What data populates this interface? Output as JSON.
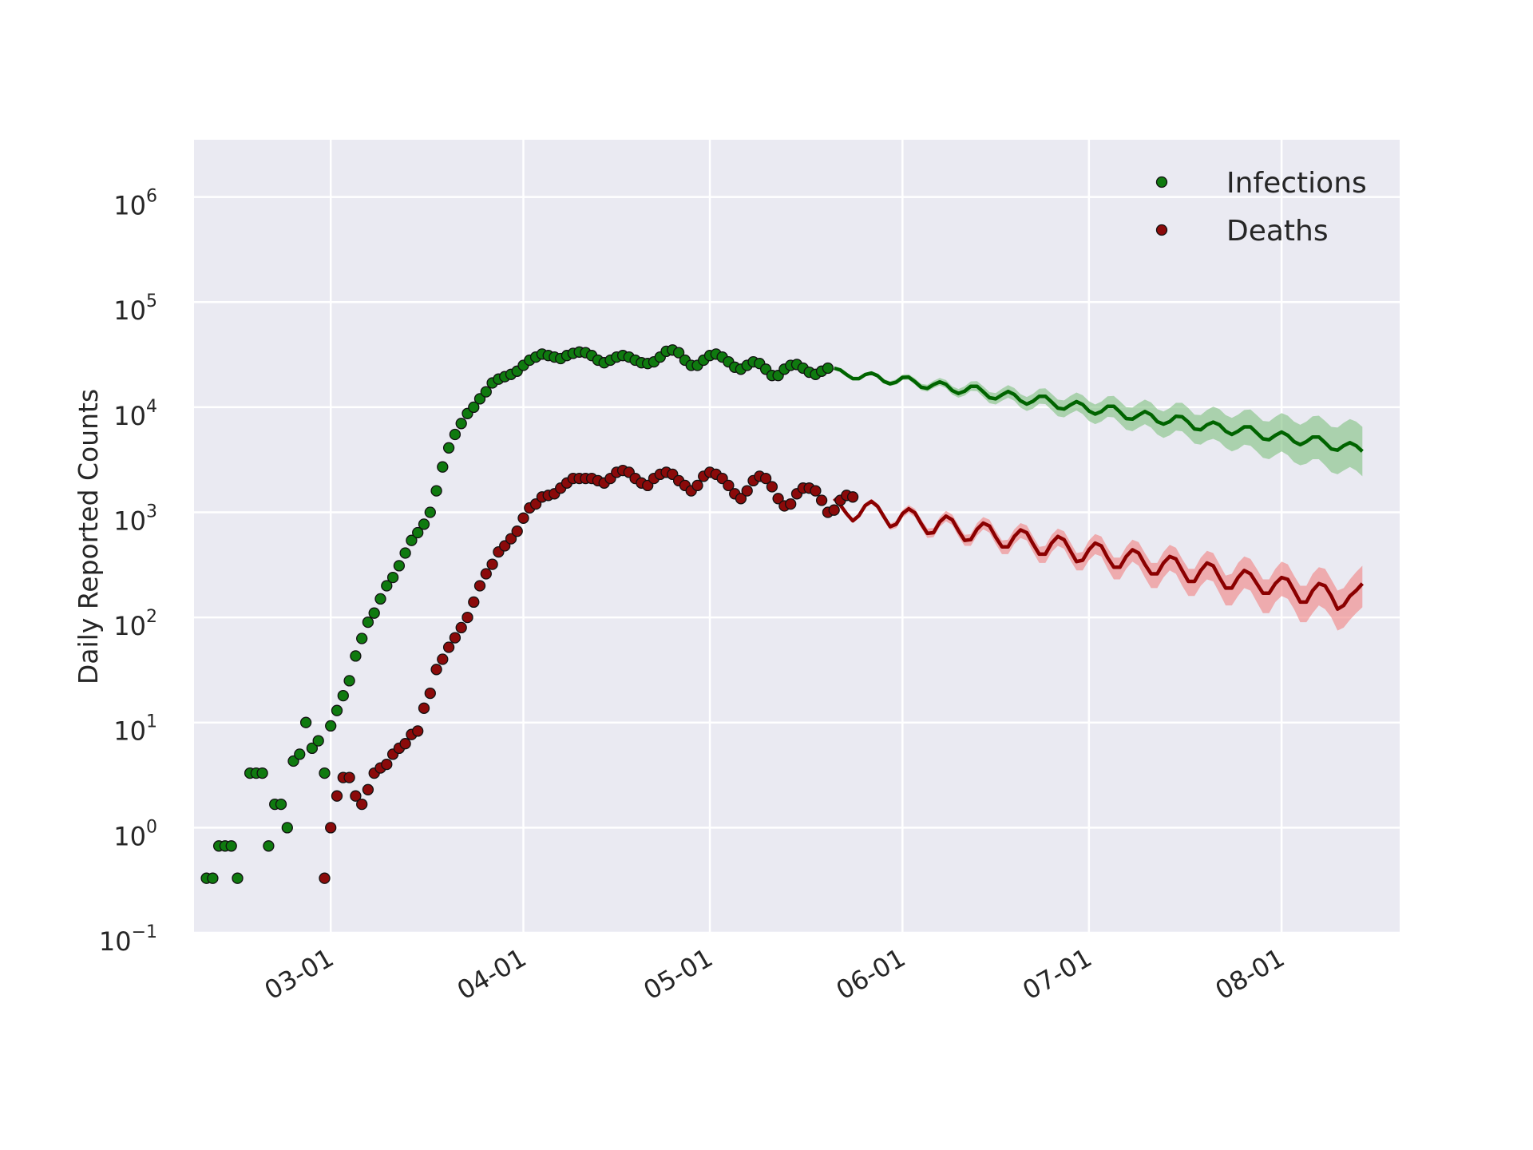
{
  "chart_data": {
    "type": "scatter",
    "title": "",
    "xlabel": "",
    "ylabel": "Daily Reported Counts",
    "y_scale": "log",
    "ylim": [
      0.1,
      3500000
    ],
    "xlim": [
      "2020-02-08",
      "2020-08-20"
    ],
    "x_ticks": [
      "2020-03-01",
      "2020-04-01",
      "2020-05-01",
      "2020-06-01",
      "2020-07-01",
      "2020-08-01"
    ],
    "x_tick_labels": [
      "03-01",
      "04-01",
      "05-01",
      "06-01",
      "07-01",
      "08-01"
    ],
    "y_ticks": [
      0.1,
      1,
      10,
      100,
      1000,
      10000,
      100000,
      1000000
    ],
    "y_tick_labels": [
      {
        "base": "10",
        "exp": "−1"
      },
      {
        "base": "10",
        "exp": "0"
      },
      {
        "base": "10",
        "exp": "1"
      },
      {
        "base": "10",
        "exp": "2"
      },
      {
        "base": "10",
        "exp": "3"
      },
      {
        "base": "10",
        "exp": "4"
      },
      {
        "base": "10",
        "exp": "5"
      },
      {
        "base": "10",
        "exp": "6"
      }
    ],
    "grid": true,
    "legend_position": "top-right",
    "colors": {
      "background": "#eaeaf2",
      "grid": "#ffffff",
      "infections": "#006400",
      "infections_band": "#7fbf7f",
      "deaths": "#8b0000",
      "deaths_band": "#f08080"
    },
    "series": [
      {
        "name": "Infections",
        "observed": {
          "start_date": "2020-02-10",
          "values": [
            0.33,
            0.33,
            0.67,
            0.67,
            0.67,
            0.33,
            null,
            3.3,
            3.3,
            3.3,
            0.67,
            1.67,
            1.67,
            1.0,
            4.3,
            5.0,
            10.0,
            5.7,
            6.7,
            3.3,
            9.3,
            13,
            18,
            25,
            43,
            63,
            90,
            110,
            150,
            200,
            240,
            310,
            410,
            540,
            640,
            770,
            1000,
            1600,
            2700,
            4100,
            5500,
            7000,
            8700,
            10000,
            12000,
            14000,
            17000,
            18500,
            19500,
            20500,
            22000,
            25000,
            28000,
            30000,
            32000,
            31000,
            30000,
            29000,
            31000,
            32500,
            33500,
            33000,
            31000,
            28000,
            26500,
            28000,
            30000,
            31000,
            30000,
            28000,
            26500,
            26000,
            27000,
            30000,
            34000,
            35000,
            33000,
            28000,
            25000,
            25000,
            28000,
            31000,
            32000,
            30000,
            27000,
            24000,
            23000,
            25000,
            27000,
            26000,
            23000,
            20000,
            20000,
            23000,
            25000,
            25500,
            23500,
            21500,
            20500,
            22000,
            23500
          ]
        },
        "forecast": {
          "start_date": "2020-05-21",
          "median": [
            23500,
            22600,
            20400,
            18700,
            18700,
            20400,
            21100,
            19900,
            17600,
            16700,
            17300,
            19200,
            19300,
            17500,
            15500,
            15100,
            16400,
            17400,
            16500,
            14400,
            13500,
            14200,
            15800,
            15800,
            14000,
            12300,
            12000,
            13100,
            14100,
            13200,
            11500,
            10700,
            11400,
            12700,
            12700,
            11200,
            9800,
            9600,
            10500,
            11300,
            10600,
            9200,
            8600,
            9100,
            10200,
            10200,
            9000,
            7800,
            7700,
            8400,
            9100,
            8500,
            7300,
            6900,
            7300,
            8200,
            8100,
            7200,
            6200,
            6100,
            6800,
            7200,
            6800,
            5900,
            5500,
            5900,
            6500,
            6500,
            5700,
            5000,
            4900,
            5400,
            5800,
            5400,
            4700,
            4400,
            4700,
            5200,
            5200,
            4600,
            4000,
            3900,
            4300,
            4600,
            4300,
            3800
          ],
          "lower": [
            23500,
            22100,
            19900,
            18200,
            18100,
            19700,
            20300,
            19100,
            16800,
            15900,
            16400,
            18100,
            18200,
            16400,
            14500,
            14100,
            15200,
            16100,
            15200,
            13200,
            12300,
            12900,
            14300,
            14200,
            12500,
            10900,
            10600,
            11500,
            12300,
            11500,
            9900,
            9200,
            9700,
            10800,
            10700,
            9400,
            8200,
            8000,
            8700,
            9300,
            8600,
            7400,
            6900,
            7300,
            8100,
            8000,
            7000,
            6100,
            5900,
            6400,
            6900,
            6400,
            5500,
            5100,
            5400,
            6000,
            5900,
            5200,
            4500,
            4400,
            4800,
            5000,
            4700,
            4100,
            3800,
            4000,
            4400,
            4300,
            3800,
            3300,
            3200,
            3500,
            3800,
            3500,
            3000,
            2800,
            2900,
            3200,
            3200,
            2800,
            2400,
            2300,
            2500,
            2700,
            2500,
            2200
          ],
          "upper": [
            23500,
            23200,
            21000,
            19300,
            19400,
            21200,
            22100,
            20900,
            18500,
            17700,
            18400,
            20400,
            20600,
            18800,
            16700,
            16300,
            17800,
            19000,
            18100,
            15800,
            14900,
            15800,
            17600,
            17700,
            15800,
            13900,
            13600,
            15000,
            16200,
            15200,
            13300,
            12500,
            13400,
            15000,
            15100,
            13400,
            11800,
            11600,
            12800,
            13800,
            13000,
            11400,
            10600,
            11300,
            12700,
            12800,
            11400,
            10000,
            9900,
            10900,
            11800,
            11100,
            9600,
            9100,
            9800,
            11000,
            11000,
            9800,
            8500,
            8400,
            9400,
            10100,
            9600,
            8400,
            7900,
            8500,
            9400,
            9500,
            8400,
            7400,
            7300,
            8100,
            8800,
            8300,
            7300,
            6800,
            7300,
            8200,
            8300,
            7400,
            6500,
            6400,
            7100,
            7700,
            7300,
            6500
          ]
        }
      },
      {
        "name": "Deaths",
        "observed": {
          "start_date": "2020-02-29",
          "values": [
            0.33,
            1.0,
            2.0,
            3.0,
            3.0,
            2.0,
            1.67,
            2.3,
            3.3,
            3.7,
            4.0,
            5.0,
            5.7,
            6.3,
            7.7,
            8.3,
            13.7,
            19,
            32,
            40,
            52,
            64,
            80,
            100,
            140,
            200,
            260,
            320,
            420,
            480,
            560,
            660,
            880,
            1100,
            1200,
            1400,
            1450,
            1500,
            1700,
            1900,
            2100,
            2100,
            2100,
            2100,
            2000,
            1900,
            2100,
            2400,
            2500,
            2400,
            2100,
            1900,
            1800,
            2100,
            2300,
            2400,
            2300,
            2000,
            1800,
            1600,
            1800,
            2200,
            2400,
            2300,
            2100,
            1800,
            1500,
            1350,
            1600,
            2000,
            2200,
            2100,
            1750,
            1350,
            1150,
            1200,
            1500,
            1700,
            1700,
            1600,
            1300,
            1000,
            1050,
            1300,
            1450,
            1400
          ]
        },
        "forecast": {
          "start_date": "2020-05-21",
          "median": [
            1350,
            1170,
            970,
            830,
            930,
            1160,
            1270,
            1140,
            910,
            730,
            770,
            970,
            1080,
            990,
            780,
            630,
            640,
            810,
            920,
            850,
            670,
            540,
            550,
            690,
            790,
            740,
            580,
            470,
            470,
            590,
            680,
            640,
            500,
            400,
            400,
            510,
            590,
            550,
            430,
            340,
            350,
            440,
            510,
            480,
            370,
            300,
            300,
            380,
            440,
            410,
            320,
            260,
            260,
            330,
            380,
            360,
            280,
            220,
            220,
            280,
            330,
            310,
            240,
            190,
            190,
            240,
            280,
            260,
            210,
            170,
            170,
            210,
            240,
            230,
            180,
            140,
            140,
            180,
            210,
            200,
            160,
            120,
            130,
            160,
            180,
            210
          ],
          "lower": [
            1350,
            1130,
            930,
            790,
            880,
            1100,
            1200,
            1070,
            850,
            680,
            710,
            890,
            990,
            900,
            710,
            570,
            580,
            730,
            820,
            760,
            590,
            480,
            480,
            600,
            690,
            640,
            500,
            400,
            400,
            500,
            570,
            540,
            420,
            330,
            330,
            420,
            480,
            450,
            350,
            280,
            280,
            350,
            400,
            380,
            290,
            230,
            230,
            290,
            340,
            310,
            240,
            190,
            190,
            240,
            280,
            260,
            200,
            160,
            160,
            200,
            230,
            220,
            170,
            130,
            130,
            160,
            190,
            180,
            140,
            110,
            110,
            140,
            160,
            150,
            120,
            90,
            90,
            110,
            130,
            120,
            100,
            75,
            80,
            95,
            110,
            125
          ],
          "upper": [
            1350,
            1210,
            1010,
            870,
            980,
            1220,
            1340,
            1210,
            970,
            780,
            830,
            1050,
            1170,
            1080,
            860,
            700,
            710,
            900,
            1030,
            950,
            760,
            610,
            620,
            790,
            900,
            850,
            670,
            540,
            550,
            690,
            790,
            750,
            590,
            470,
            480,
            610,
            700,
            660,
            520,
            410,
            420,
            540,
            620,
            590,
            460,
            370,
            370,
            470,
            550,
            520,
            410,
            330,
            330,
            420,
            490,
            460,
            360,
            290,
            290,
            370,
            430,
            410,
            320,
            250,
            260,
            330,
            380,
            360,
            290,
            230,
            230,
            290,
            340,
            320,
            250,
            200,
            200,
            260,
            300,
            290,
            230,
            180,
            190,
            230,
            270,
            310
          ]
        }
      }
    ]
  }
}
